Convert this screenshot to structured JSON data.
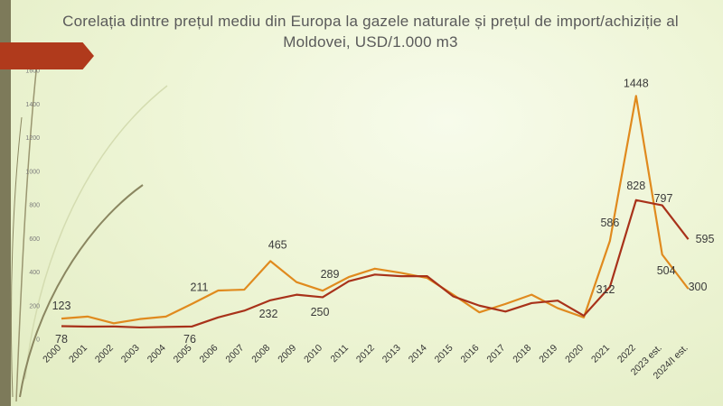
{
  "title": "Corelația dintre prețul mediu din Europa la gazele naturale și prețul de import/achiziție al Moldovei, USD/1.000 m3",
  "chart_data": {
    "type": "line",
    "title": "Corelația dintre prețul mediu din Europa la gazele naturale și prețul de import/achiziție al Moldovei, USD/1.000 m3",
    "categories": [
      "2000",
      "2001",
      "2002",
      "2003",
      "2004",
      "2005",
      "2006",
      "2007",
      "2008",
      "2009",
      "2010",
      "2011",
      "2012",
      "2013",
      "2014",
      "2015",
      "2016",
      "2017",
      "2018",
      "2019",
      "2020",
      "2021",
      "2022",
      "2023 est.",
      "2024/I est."
    ],
    "ylim": [
      0,
      1600
    ],
    "yticks": [
      0,
      200,
      400,
      600,
      800,
      1000,
      1200,
      1400,
      1600
    ],
    "grid": false,
    "series": [
      {
        "color": "#e08a1e",
        "values": [
          123,
          135,
          95,
          120,
          135,
          211,
          290,
          295,
          465,
          340,
          289,
          370,
          420,
          395,
          365,
          265,
          160,
          210,
          265,
          185,
          130,
          586,
          1448,
          504,
          300
        ],
        "labels": {
          "0": "123",
          "5": "211",
          "8": "465",
          "10": "289",
          "21": "586",
          "22": "1448",
          "23": "504",
          "24": "300"
        }
      },
      {
        "color": "#a8321a",
        "values": [
          78,
          75,
          76,
          70,
          73,
          76,
          130,
          170,
          232,
          265,
          250,
          345,
          385,
          375,
          375,
          255,
          200,
          165,
          215,
          230,
          140,
          312,
          828,
          797,
          595
        ],
        "labels": {
          "0": "78",
          "5": "76",
          "8": "232",
          "10": "250",
          "21": "312",
          "22": "828",
          "23": "797",
          "24": "595"
        }
      }
    ]
  }
}
